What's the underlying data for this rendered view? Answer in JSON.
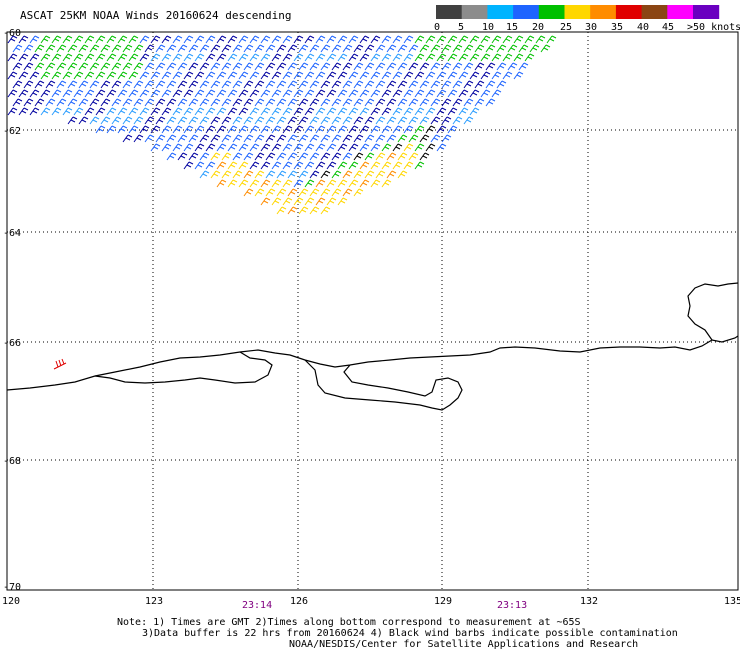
{
  "title": "ASCAT 25KM NOAA Winds 20160624 descending",
  "legend": {
    "labels": [
      "0",
      "5",
      "10",
      "15",
      "20",
      "25",
      "30",
      "35",
      "40",
      "45",
      ">50 knots"
    ],
    "colors": [
      "#404040",
      "#8c8c8c",
      "#00b4ff",
      "#1e64ff",
      "#00c000",
      "#ffd700",
      "#ff8c00",
      "#e00000",
      "#8b4513",
      "#ff00ff",
      "#6a00c0"
    ]
  },
  "longitude_labels": [
    "120",
    "123",
    "126",
    "129",
    "132",
    "135"
  ],
  "latitude_labels": [
    "-60",
    "-62",
    "-64",
    "-66",
    "-68",
    "-70"
  ],
  "times": [
    "23:14",
    "23:13"
  ],
  "notes": [
    "Note: 1) Times are GMT 2)Times along bottom correspond to measurement at ~65S",
    "3)Data buffer is 22 hrs from 20160624 4) Black wind barbs indicate possible contamination",
    "NOAA/NESDIS/Center for Satellite Applications and Research"
  ],
  "icons": {
    "wind_barb": "wind-barb-icon",
    "coastline": "coastline-shape"
  }
}
